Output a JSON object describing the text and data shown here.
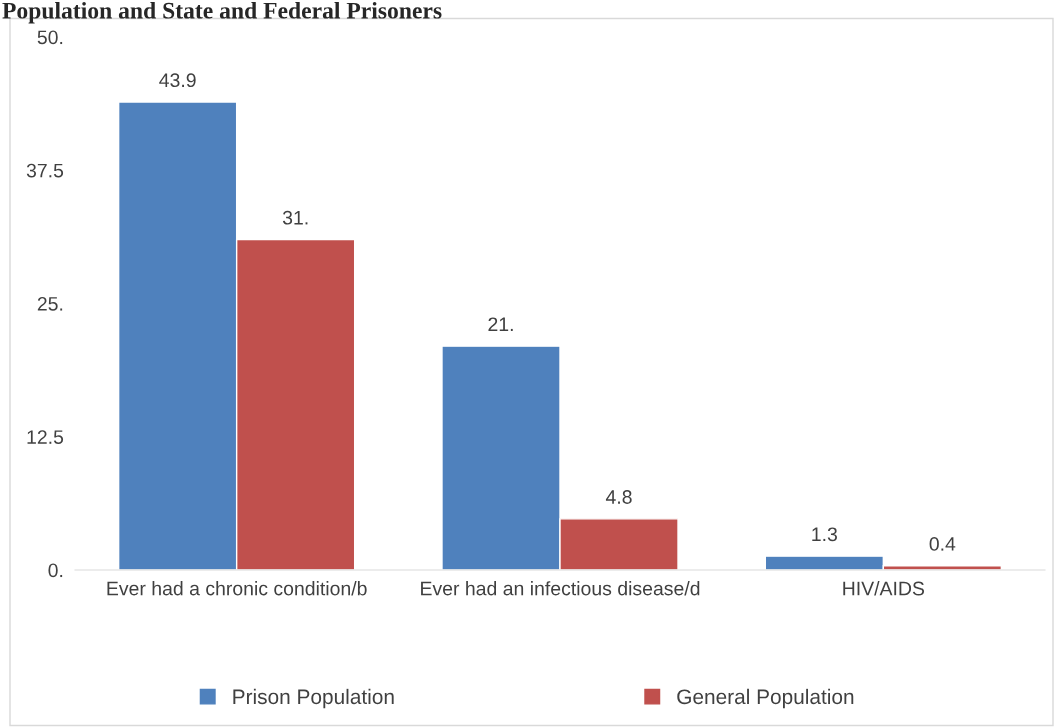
{
  "chart_data": {
    "type": "bar",
    "title": "Population and State and Federal Prisoners",
    "categories": [
      "Ever had a chronic condition/b",
      "Ever had an infectious disease/d",
      "HIV/AIDS"
    ],
    "series": [
      {
        "name": "Prison Population",
        "color": "#4f81bd",
        "values": [
          43.9,
          21,
          1.3
        ],
        "value_labels": [
          "43.9",
          "21.",
          "1.3"
        ]
      },
      {
        "name": "General Population",
        "color": "#c0504d",
        "values": [
          31,
          4.8,
          0.4
        ],
        "value_labels": [
          "31.",
          "4.8",
          "0.4"
        ]
      }
    ],
    "ylim": [
      0,
      50
    ],
    "yticks": [
      {
        "value": 0,
        "label": "0."
      },
      {
        "value": 12.5,
        "label": "12.5"
      },
      {
        "value": 25,
        "label": "25."
      },
      {
        "value": 37.5,
        "label": "37.5"
      },
      {
        "value": 50,
        "label": "50."
      }
    ],
    "grid": false,
    "legend": "bottom"
  }
}
